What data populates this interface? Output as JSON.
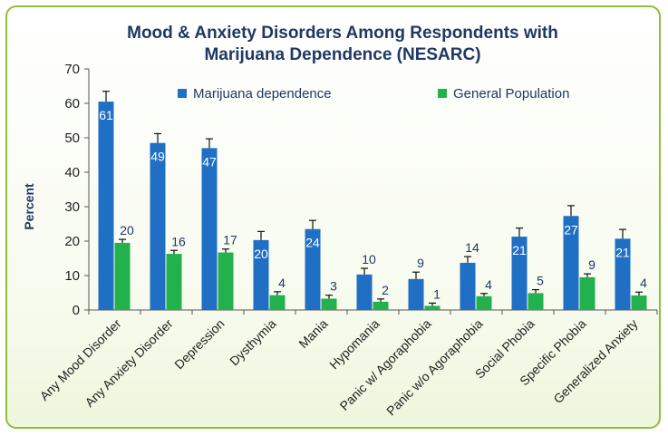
{
  "chart_data": {
    "type": "bar",
    "title": "Mood & Anxiety Disorders Among Respondents with",
    "title_line2": "Marijuana Dependence (NESARC)",
    "xlabel": "",
    "ylabel": "Percent",
    "ylim": [
      0,
      70
    ],
    "yticks": [
      0,
      10,
      20,
      30,
      40,
      50,
      60,
      70
    ],
    "grid": false,
    "legend_position": "top",
    "error_bars": true,
    "categories": [
      "Any Mood Disorder",
      "Any Anxiety Disorder",
      "Depression",
      "Dysthymia",
      "Mania",
      "Hypomania",
      "Panic w/ Agoraphobia",
      "Panic w/o Agoraphobia",
      "Social Phobia",
      "Specific Phobia",
      "Generalized Anxiety"
    ],
    "series": [
      {
        "name": "Marijuana dependence",
        "color": "#1f6fc5",
        "values": [
          61,
          49,
          47,
          20,
          24,
          10,
          9,
          14,
          21,
          27,
          21
        ],
        "bar_heights": [
          60.5,
          48.5,
          47,
          20.3,
          23.5,
          10.3,
          9,
          13.7,
          21.3,
          27.3,
          20.7
        ],
        "error": [
          3,
          2.7,
          2.7,
          2.5,
          2.5,
          1.8,
          2,
          1.8,
          2.5,
          3,
          2.7
        ],
        "labels": [
          "61",
          "49",
          "47",
          "20",
          "24",
          "10",
          "9",
          "14",
          "21",
          "27",
          "21"
        ]
      },
      {
        "name": "General Population",
        "color": "#22b14c",
        "values": [
          20,
          16,
          17,
          4,
          3,
          2,
          1,
          4,
          5,
          9,
          4
        ],
        "bar_heights": [
          19.5,
          16.3,
          16.7,
          4.3,
          3.3,
          2.4,
          1.2,
          4,
          4.9,
          9.5,
          4.2
        ],
        "error": [
          1,
          1,
          1,
          1,
          1,
          0.8,
          0.8,
          0.8,
          1,
          1,
          1
        ],
        "labels": [
          "20",
          "16",
          "17",
          "4",
          "3",
          "2",
          "1",
          "4",
          "5",
          "9",
          "4"
        ]
      }
    ]
  }
}
